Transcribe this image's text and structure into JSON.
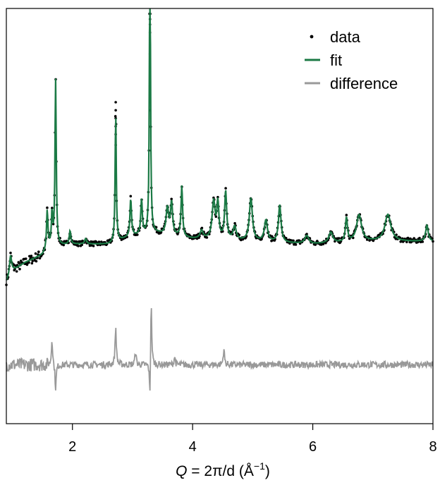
{
  "chart_data": {
    "type": "line",
    "title": "",
    "xlabel": {
      "var": "Q",
      "expr": " = 2π/d (",
      "unit": "Å",
      "sup": "−1",
      "close": ")"
    },
    "ylabel": "",
    "xlim": [
      0.9,
      8.0
    ],
    "ylim": [
      -0.55,
      1.0
    ],
    "x_ticks": [
      2,
      4,
      6,
      8
    ],
    "y_ticks_labeled": false,
    "grid": false,
    "legend": {
      "placement": "top-right",
      "entries": [
        {
          "label": "data",
          "style": "dots",
          "color": "#000000"
        },
        {
          "label": "fit",
          "style": "line",
          "color": "#1b7a45"
        },
        {
          "label": "difference",
          "style": "line",
          "color": "#999999"
        }
      ]
    },
    "baseline": 0.12,
    "background_points": [
      [
        0.9,
        -0.02
      ],
      [
        1.0,
        0.02
      ],
      [
        1.2,
        0.05
      ],
      [
        1.5,
        0.08
      ],
      [
        1.6,
        0.11
      ],
      [
        2.0,
        0.12
      ],
      [
        2.6,
        0.12
      ],
      [
        3.0,
        0.15
      ],
      [
        3.4,
        0.16
      ],
      [
        4.0,
        0.14
      ],
      [
        5.0,
        0.13
      ],
      [
        6.0,
        0.12
      ],
      [
        7.0,
        0.13
      ],
      [
        8.0,
        0.13
      ]
    ],
    "peaks": [
      {
        "q": 0.97,
        "height": 0.07,
        "width": 0.02
      },
      {
        "q": 1.58,
        "height": 0.14,
        "width": 0.013
      },
      {
        "q": 1.66,
        "height": 0.12,
        "width": 0.012
      },
      {
        "q": 1.72,
        "height": 0.62,
        "width": 0.012
      },
      {
        "q": 1.96,
        "height": 0.05,
        "width": 0.015
      },
      {
        "q": 2.22,
        "height": 0.02,
        "width": 0.02
      },
      {
        "q": 2.72,
        "height": 0.48,
        "width": 0.011
      },
      {
        "q": 2.97,
        "height": 0.14,
        "width": 0.015
      },
      {
        "q": 3.15,
        "height": 0.13,
        "width": 0.015
      },
      {
        "q": 3.29,
        "height": 1.18,
        "width": 0.01
      },
      {
        "q": 3.58,
        "height": 0.1,
        "width": 0.025
      },
      {
        "q": 3.65,
        "height": 0.12,
        "width": 0.02
      },
      {
        "q": 3.82,
        "height": 0.19,
        "width": 0.015
      },
      {
        "q": 4.15,
        "height": 0.03,
        "width": 0.03
      },
      {
        "q": 4.35,
        "height": 0.14,
        "width": 0.03
      },
      {
        "q": 4.42,
        "height": 0.13,
        "width": 0.02
      },
      {
        "q": 4.55,
        "height": 0.18,
        "width": 0.02
      },
      {
        "q": 4.7,
        "height": 0.05,
        "width": 0.03
      },
      {
        "q": 4.97,
        "height": 0.16,
        "width": 0.03
      },
      {
        "q": 5.22,
        "height": 0.08,
        "width": 0.03
      },
      {
        "q": 5.45,
        "height": 0.14,
        "width": 0.025
      },
      {
        "q": 5.9,
        "height": 0.03,
        "width": 0.04
      },
      {
        "q": 6.3,
        "height": 0.04,
        "width": 0.04
      },
      {
        "q": 6.56,
        "height": 0.09,
        "width": 0.02
      },
      {
        "q": 6.77,
        "height": 0.1,
        "width": 0.05
      },
      {
        "q": 7.25,
        "height": 0.1,
        "width": 0.06
      },
      {
        "q": 7.9,
        "height": 0.06,
        "width": 0.025
      }
    ],
    "series": [
      {
        "name": "data",
        "style": "dots",
        "color": "#000000"
      },
      {
        "name": "fit",
        "style": "line",
        "color": "#1b7a45"
      },
      {
        "name": "difference",
        "style": "line",
        "color": "#999999",
        "offset": -0.33
      }
    ]
  }
}
